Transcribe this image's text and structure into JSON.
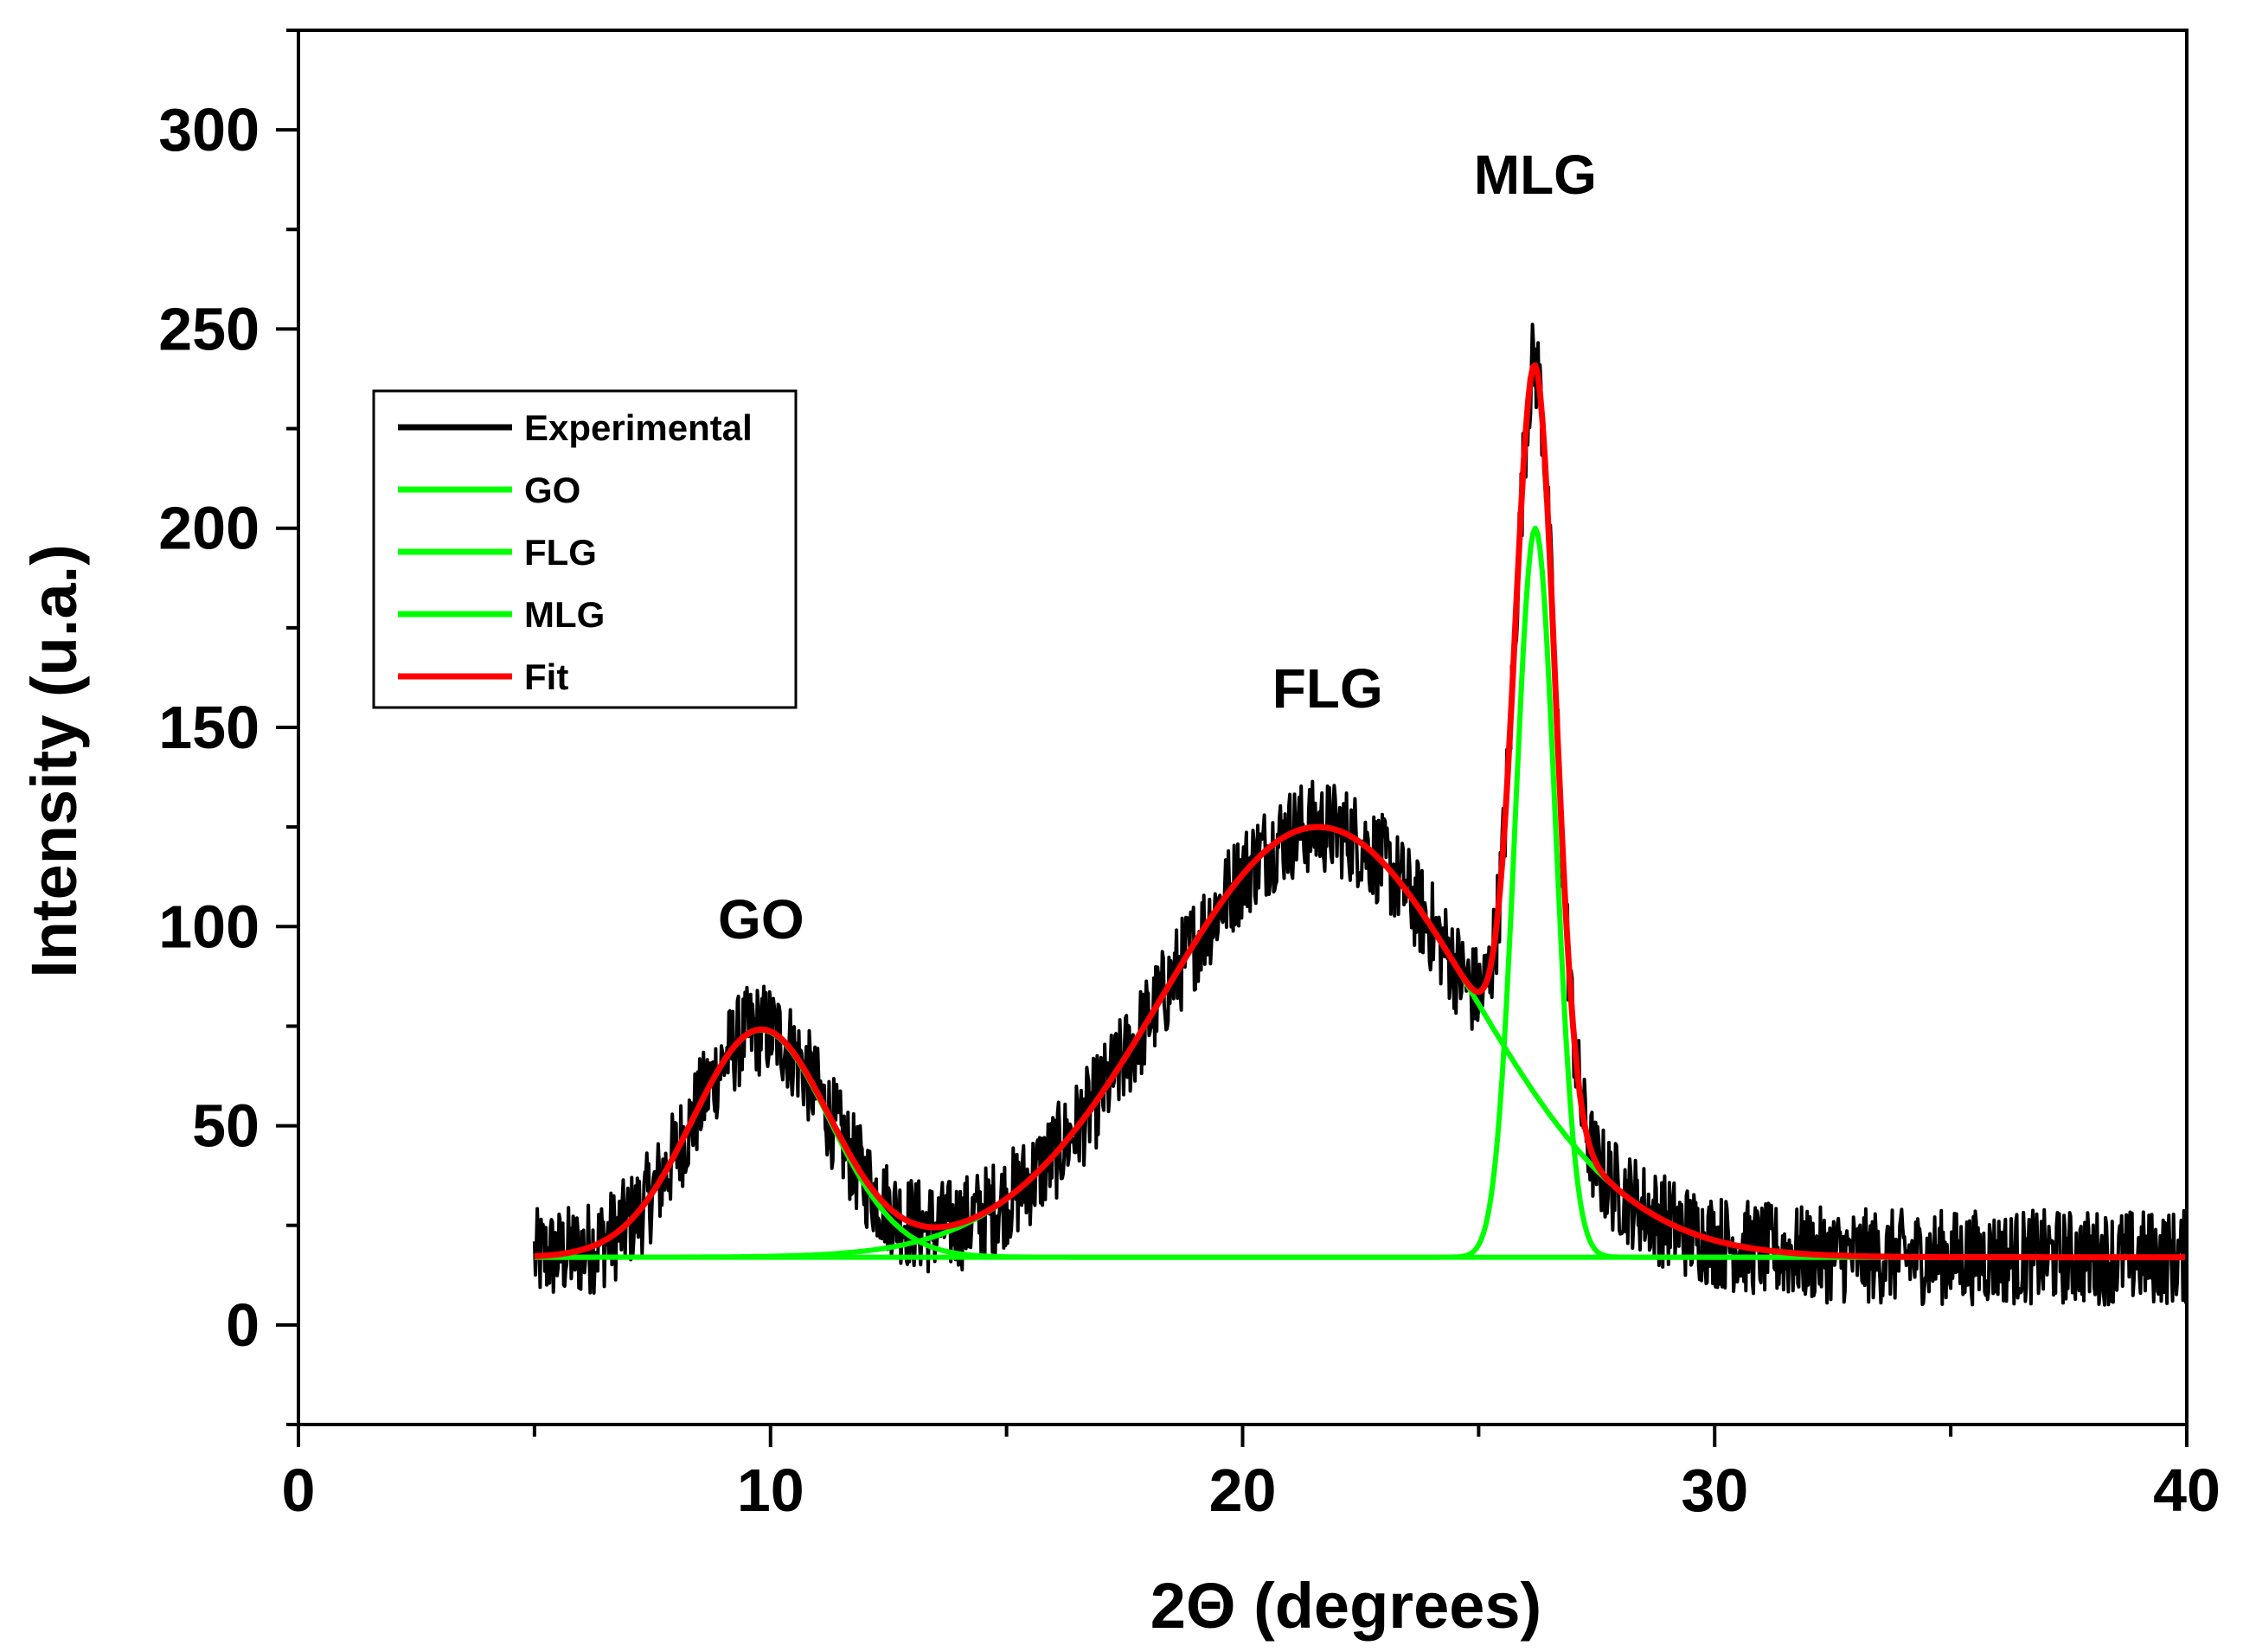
{
  "chart_data": {
    "type": "line",
    "title": "",
    "xlabel": "2Θ (degrees)",
    "ylabel": "Intensity (u.a.)",
    "xlim": [
      0,
      40
    ],
    "ylim": [
      -25,
      325
    ],
    "x_ticks": [
      0,
      10,
      20,
      30,
      40
    ],
    "y_ticks": [
      0,
      50,
      100,
      150,
      200,
      250,
      300
    ],
    "grid": false,
    "legend_position": "upper-left",
    "baseline": 17,
    "data_range": [
      5,
      40
    ],
    "peaks": [
      {
        "name": "GO",
        "center": 9.8,
        "height": 57,
        "sigma": 1.45
      },
      {
        "name": "FLG",
        "center": 21.6,
        "height": 108,
        "sigma": 3.3
      },
      {
        "name": "MLG",
        "center": 26.2,
        "height": 183,
        "sigma": 0.42
      }
    ],
    "annotations": [
      {
        "text": "GO",
        "x": 9.8,
        "y": 97
      },
      {
        "text": "FLG",
        "x": 21.8,
        "y": 155
      },
      {
        "text": "MLG",
        "x": 26.2,
        "y": 284
      }
    ],
    "series": [
      {
        "name": "Experimental",
        "color": "#000000",
        "kind": "noisy_sum",
        "noise_amplitude": 12
      },
      {
        "name": "GO",
        "color": "#00ff00",
        "kind": "component",
        "peak": "GO"
      },
      {
        "name": "FLG",
        "color": "#00ff00",
        "kind": "component",
        "peak": "FLG"
      },
      {
        "name": "MLG",
        "color": "#00ff00",
        "kind": "component",
        "peak": "MLG"
      },
      {
        "name": "Fit",
        "color": "#ff0000",
        "kind": "sum"
      }
    ]
  }
}
